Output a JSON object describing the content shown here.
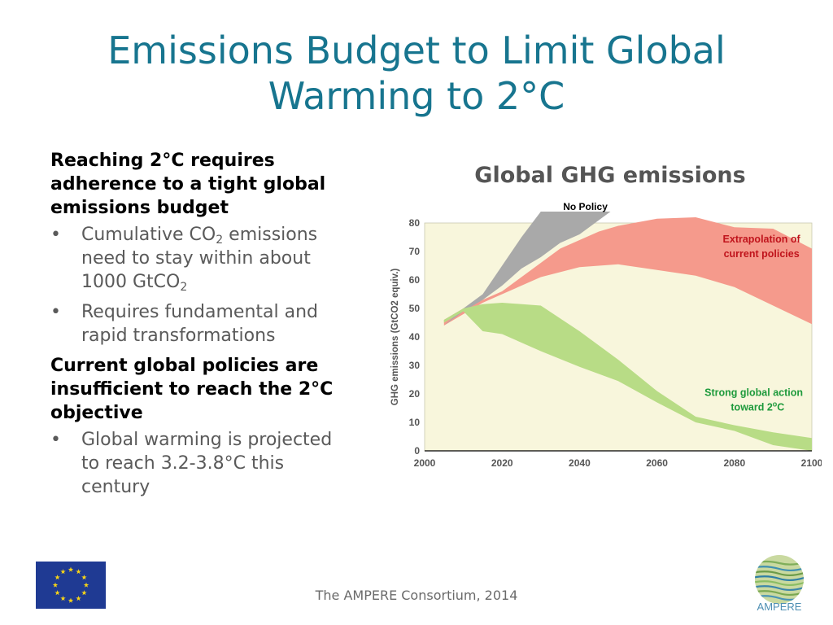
{
  "slide": {
    "title_line1": "Emissions Budget to Limit Global",
    "title_line2": "Warming to 2°C",
    "footer": "The AMPERE Consortium, 2014",
    "logo_text": "AMPERE"
  },
  "left": {
    "heading1_lines": [
      "Reaching 2°C requires",
      "adherence to a tight global",
      "emissions budget"
    ],
    "bullet1_a": "Cumulative CO",
    "bullet1_a_sub": "2",
    "bullet1_a_rest": " emissions",
    "bullet1_b": "need to stay within about",
    "bullet1_c": "1000 GtCO",
    "bullet1_c_sub": "2",
    "bullet2_lines": [
      "Requires fundamental and",
      "rapid transformations"
    ],
    "heading2_lines": [
      "Current global policies are",
      "insufficient to reach the 2°C",
      "objective"
    ],
    "bullet3_lines": [
      "Global warming is projected",
      "to reach 3.2-3.8°C this",
      "century"
    ],
    "bullet_glyph": "•"
  },
  "chart_heading": "Global GHG emissions",
  "colors": {
    "title": "#17758f",
    "plot_bg": "#f8f6dc",
    "no_policy": "#a9a9a9",
    "current_policies": "#f59a8c",
    "strong_action": "#b8dc86",
    "label_red": "#c0141c",
    "label_green": "#1e9a3c"
  },
  "chart_data": {
    "type": "area",
    "ylabel": "GHG emissions (GtCO2 equiv.)",
    "xlim": [
      2000,
      2100
    ],
    "ylim": [
      0,
      80
    ],
    "x_ticks": [
      2000,
      2020,
      2040,
      2060,
      2080,
      2100
    ],
    "y_ticks": [
      0,
      10,
      20,
      30,
      40,
      50,
      60,
      70,
      80
    ],
    "grid": false,
    "series": [
      {
        "name": "Extrapolation of current policies",
        "label_lines": [
          "Extrapolation of",
          "current policies"
        ],
        "upper": [
          [
            2005,
            46
          ],
          [
            2010,
            50
          ],
          [
            2020,
            56
          ],
          [
            2025,
            61
          ],
          [
            2030,
            66
          ],
          [
            2035,
            71
          ],
          [
            2040,
            74
          ],
          [
            2045,
            77
          ],
          [
            2050,
            79
          ],
          [
            2060,
            81.5
          ],
          [
            2070,
            82
          ],
          [
            2080,
            78.5
          ],
          [
            2090,
            78
          ],
          [
            2100,
            71
          ]
        ],
        "lower": [
          [
            2005,
            44
          ],
          [
            2010,
            48
          ],
          [
            2015,
            52
          ],
          [
            2020,
            55
          ],
          [
            2030,
            61
          ],
          [
            2040,
            64.5
          ],
          [
            2050,
            65.5
          ],
          [
            2060,
            63.5
          ],
          [
            2070,
            61.5
          ],
          [
            2080,
            57.5
          ],
          [
            2090,
            51
          ],
          [
            2100,
            44.5
          ]
        ]
      },
      {
        "name": "No Policy",
        "label_lines": [
          "No Policy"
        ],
        "upper": [
          [
            2005,
            44
          ],
          [
            2010,
            50
          ],
          [
            2015,
            55
          ],
          [
            2020,
            65
          ],
          [
            2025,
            75
          ],
          [
            2030,
            84
          ],
          [
            2048,
            84
          ]
        ],
        "lower": [
          [
            2005,
            44
          ],
          [
            2010,
            49
          ],
          [
            2015,
            53
          ],
          [
            2020,
            58
          ],
          [
            2025,
            64
          ],
          [
            2030,
            68
          ],
          [
            2035,
            73
          ],
          [
            2040,
            76
          ],
          [
            2048,
            84
          ]
        ]
      },
      {
        "name": "Strong global action toward 2°C",
        "label_lines": [
          "Strong global action",
          "toward 2",
          "o",
          "C"
        ],
        "upper": [
          [
            2005,
            46
          ],
          [
            2010,
            50
          ],
          [
            2015,
            51.5
          ],
          [
            2020,
            52
          ],
          [
            2030,
            51
          ],
          [
            2040,
            42
          ],
          [
            2050,
            32
          ],
          [
            2060,
            21
          ],
          [
            2070,
            12
          ],
          [
            2080,
            9
          ],
          [
            2090,
            6.5
          ],
          [
            2100,
            4.5
          ]
        ],
        "lower": [
          [
            2005,
            45
          ],
          [
            2010,
            49
          ],
          [
            2015,
            42
          ],
          [
            2020,
            41
          ],
          [
            2030,
            35
          ],
          [
            2040,
            29.5
          ],
          [
            2050,
            24.5
          ],
          [
            2060,
            17
          ],
          [
            2070,
            10
          ],
          [
            2080,
            7
          ],
          [
            2090,
            2
          ],
          [
            2100,
            0
          ]
        ]
      }
    ]
  }
}
